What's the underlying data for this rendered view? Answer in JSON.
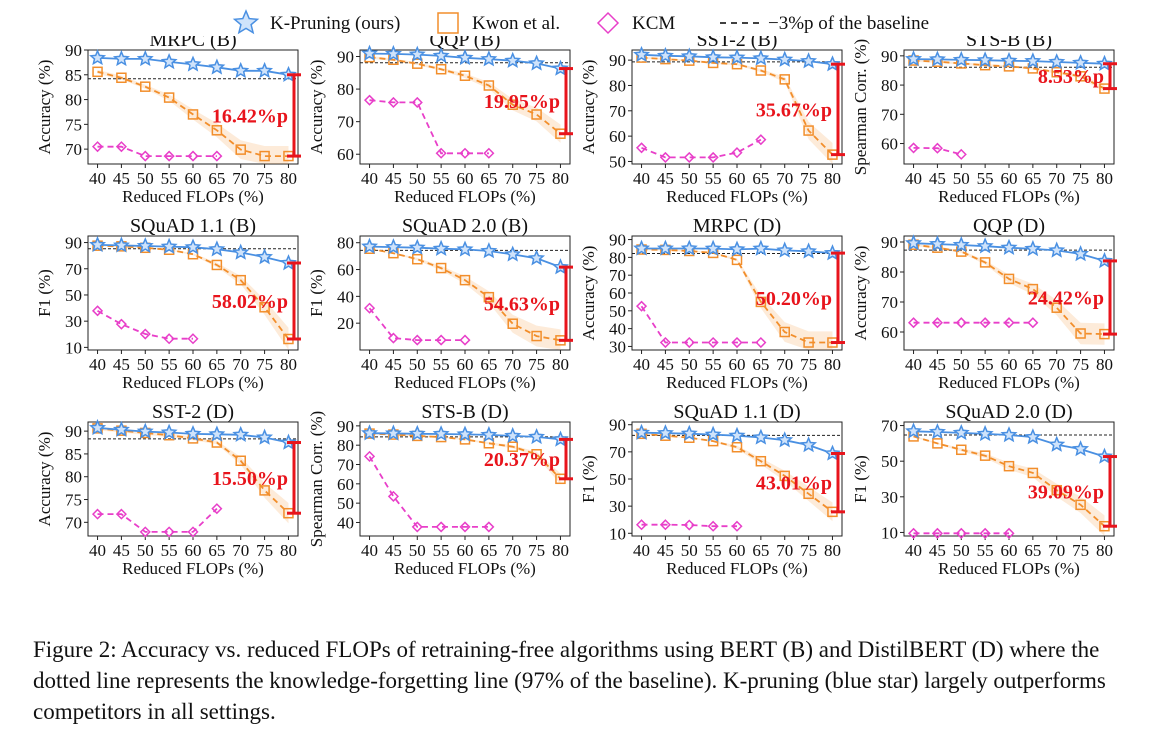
{
  "legend": {
    "items": [
      {
        "label": "K-Pruning (ours)",
        "marker": "star",
        "color": "#4a90e2"
      },
      {
        "label": "Kwon et al.",
        "marker": "square",
        "color": "#f28e2b"
      },
      {
        "label": "KCM",
        "marker": "diamond",
        "color": "#e83fc9"
      },
      {
        "label": "−3%p of the baseline",
        "marker": "dashed-line",
        "color": "#000000"
      }
    ]
  },
  "colors": {
    "kpruning": "#4a90e2",
    "kwon": "#f28e2b",
    "kcm": "#e83fc9",
    "annotation": "#e8141c",
    "baseline": "#222222"
  },
  "caption": "Figure 2: Accuracy vs. reduced FLOPs of retraining-free algorithms using BERT (B) and DistilBERT (D) where the dotted line represents the knowledge-forgetting line (97% of the baseline). K-pruning (blue star) largely outperforms competitors in all settings.",
  "chart_data": [
    {
      "type": "line",
      "title": "MRPC (B)",
      "xlabel": "Reduced FLOPs (%)",
      "ylabel": "Accuracy (%)",
      "ylim": [
        67,
        90
      ],
      "yticks": [
        70,
        75,
        80,
        85,
        90
      ],
      "x": [
        40,
        45,
        50,
        55,
        60,
        65,
        70,
        75,
        80
      ],
      "baseline": 84.2,
      "annotation": {
        "text": "16.42%p",
        "from": 85.0,
        "to": 68.6
      },
      "series": [
        {
          "name": "K-Pruning (ours)",
          "values": [
            88.4,
            88.2,
            88.2,
            87.6,
            87.1,
            86.5,
            85.8,
            85.8,
            85.0
          ]
        },
        {
          "name": "Kwon et al.",
          "values": [
            85.6,
            84.4,
            82.6,
            80.4,
            77.0,
            73.8,
            69.9,
            68.6,
            68.6
          ]
        },
        {
          "name": "KCM",
          "values": [
            70.5,
            70.5,
            68.6,
            68.6,
            68.6,
            68.6,
            null,
            null,
            null
          ]
        }
      ]
    },
    {
      "type": "line",
      "title": "QQP (B)",
      "xlabel": "Reduced FLOPs (%)",
      "ylabel": "Accuracy (%)",
      "ylim": [
        57,
        92
      ],
      "yticks": [
        60,
        70,
        80,
        90
      ],
      "x": [
        40,
        45,
        50,
        55,
        60,
        65,
        70,
        75,
        80
      ],
      "baseline": 88.1,
      "annotation": {
        "text": "19.95%p",
        "from": 86.3,
        "to": 66.3
      },
      "series": [
        {
          "name": "K-Pruning (ours)",
          "values": [
            90.9,
            90.8,
            90.6,
            90.2,
            89.6,
            89.2,
            88.7,
            87.9,
            86.3
          ]
        },
        {
          "name": "Kwon et al.",
          "values": [
            89.8,
            89.0,
            87.8,
            86.1,
            84.1,
            81.1,
            75.2,
            72.2,
            66.3
          ]
        },
        {
          "name": "KCM",
          "values": [
            76.6,
            75.9,
            75.9,
            60.3,
            60.3,
            60.3,
            null,
            null,
            null
          ]
        }
      ]
    },
    {
      "type": "line",
      "title": "SST-2 (B)",
      "xlabel": "Reduced FLOPs (%)",
      "ylabel": "Accuracy (%)",
      "ylim": [
        49,
        94
      ],
      "yticks": [
        50,
        60,
        70,
        80,
        90
      ],
      "x": [
        40,
        45,
        50,
        55,
        60,
        65,
        70,
        75,
        80
      ],
      "baseline": 89.3,
      "annotation": {
        "text": "35.67%p",
        "from": 88.4,
        "to": 52.7
      },
      "series": [
        {
          "name": "K-Pruning (ours)",
          "values": [
            92.1,
            91.7,
            91.5,
            91.1,
            91.0,
            90.7,
            90.2,
            89.6,
            88.4
          ]
        },
        {
          "name": "Kwon et al.",
          "values": [
            91.0,
            90.4,
            89.8,
            88.9,
            88.4,
            85.9,
            82.4,
            62.2,
            52.7
          ]
        },
        {
          "name": "KCM",
          "values": [
            55.4,
            51.6,
            51.6,
            51.6,
            53.5,
            58.6,
            null,
            null,
            null
          ]
        }
      ]
    },
    {
      "type": "line",
      "title": "STS-B (B)",
      "xlabel": "Reduced FLOPs (%)",
      "ylabel": "Spearman Corr. (%)",
      "ylim": [
        53,
        92
      ],
      "yticks": [
        60,
        70,
        80,
        90
      ],
      "x": [
        40,
        45,
        50,
        55,
        60,
        65,
        70,
        75,
        80
      ],
      "baseline": 86.1,
      "annotation": {
        "text": "8.53%p",
        "from": 87.3,
        "to": 78.8
      },
      "series": [
        {
          "name": "K-Pruning (ours)",
          "values": [
            88.9,
            88.8,
            88.6,
            88.5,
            88.3,
            88.2,
            87.9,
            87.6,
            87.3
          ]
        },
        {
          "name": "Kwon et al.",
          "values": [
            88.4,
            88.0,
            87.4,
            86.8,
            86.4,
            85.7,
            84.4,
            83.0,
            78.8
          ]
        },
        {
          "name": "KCM",
          "values": [
            58.5,
            58.4,
            56.3,
            null,
            null,
            null,
            null,
            null,
            null
          ]
        }
      ]
    },
    {
      "type": "line",
      "title": "SQuAD 1.1 (B)",
      "xlabel": "Reduced FLOPs (%)",
      "ylabel": "F1 (%)",
      "ylim": [
        8,
        95
      ],
      "yticks": [
        10,
        30,
        50,
        70,
        90
      ],
      "x": [
        40,
        45,
        50,
        55,
        60,
        65,
        70,
        75,
        80
      ],
      "baseline": 85.3,
      "annotation": {
        "text": "58.02%p",
        "from": 74.4,
        "to": 16.4
      },
      "series": [
        {
          "name": "K-Pruning (ours)",
          "values": [
            88.2,
            87.8,
            87.4,
            86.9,
            86.4,
            84.9,
            82.4,
            78.9,
            74.4
          ]
        },
        {
          "name": "Kwon et al.",
          "values": [
            87.6,
            87.1,
            86.0,
            84.5,
            81.1,
            72.9,
            61.3,
            40.6,
            16.4
          ]
        },
        {
          "name": "KCM",
          "values": [
            37.9,
            27.7,
            20.2,
            16.6,
            16.6,
            null,
            null,
            null,
            null
          ]
        }
      ]
    },
    {
      "type": "line",
      "title": "SQuAD 2.0 (B)",
      "xlabel": "Reduced FLOPs (%)",
      "ylabel": "F1 (%)",
      "ylim": [
        0,
        85
      ],
      "yticks": [
        20,
        40,
        60,
        80
      ],
      "x": [
        40,
        45,
        50,
        55,
        60,
        65,
        70,
        75,
        80
      ],
      "baseline": 74.3,
      "annotation": {
        "text": "54.63%p",
        "from": 61.8,
        "to": 7.2
      },
      "series": [
        {
          "name": "K-Pruning (ours)",
          "values": [
            77.1,
            76.7,
            76.3,
            75.5,
            75.0,
            73.8,
            71.3,
            68.4,
            61.8
          ]
        },
        {
          "name": "Kwon et al.",
          "values": [
            75.5,
            72.2,
            67.7,
            61.1,
            52.1,
            39.4,
            19.6,
            10.4,
            7.2
          ]
        },
        {
          "name": "KCM",
          "values": [
            31.2,
            8.9,
            7.4,
            7.4,
            7.4,
            null,
            null,
            null,
            null
          ]
        }
      ]
    },
    {
      "type": "line",
      "title": "MRPC (D)",
      "xlabel": "Reduced FLOPs (%)",
      "ylabel": "Accuracy (%)",
      "ylim": [
        28,
        92
      ],
      "yticks": [
        30,
        40,
        50,
        60,
        70,
        80,
        90
      ],
      "x": [
        40,
        45,
        50,
        55,
        60,
        65,
        70,
        75,
        80
      ],
      "baseline": 82.2,
      "annotation": {
        "text": "50.20%p",
        "from": 82.4,
        "to": 32.2
      },
      "series": [
        {
          "name": "K-Pruning (ours)",
          "values": [
            85.0,
            85.0,
            85.0,
            84.9,
            84.5,
            84.9,
            83.9,
            83.4,
            82.4
          ]
        },
        {
          "name": "Kwon et al.",
          "values": [
            84.4,
            84.2,
            83.6,
            82.5,
            78.6,
            55.0,
            38.1,
            32.2,
            32.2
          ]
        },
        {
          "name": "KCM",
          "values": [
            52.6,
            32.2,
            32.2,
            32.2,
            32.2,
            32.2,
            null,
            null,
            null
          ]
        }
      ]
    },
    {
      "type": "line",
      "title": "QQP (D)",
      "xlabel": "Reduced FLOPs (%)",
      "ylabel": "Accuracy (%)",
      "ylim": [
        54,
        92
      ],
      "yticks": [
        60,
        70,
        80,
        90
      ],
      "x": [
        40,
        45,
        50,
        55,
        60,
        65,
        70,
        75,
        80
      ],
      "baseline": 87.3,
      "annotation": {
        "text": "24.42%p",
        "from": 83.7,
        "to": 59.3
      },
      "series": [
        {
          "name": "K-Pruning (ours)",
          "values": [
            89.6,
            89.3,
            89.0,
            88.6,
            88.1,
            87.7,
            87.2,
            86.0,
            83.7
          ]
        },
        {
          "name": "Kwon et al.",
          "values": [
            89.1,
            88.1,
            86.8,
            83.2,
            77.7,
            74.3,
            68.1,
            59.5,
            59.3
          ]
        },
        {
          "name": "KCM",
          "values": [
            63.1,
            63.1,
            63.1,
            63.1,
            63.1,
            63.1,
            null,
            null,
            null
          ]
        }
      ]
    },
    {
      "type": "line",
      "title": "SST-2 (D)",
      "xlabel": "Reduced FLOPs (%)",
      "ylabel": "Accuracy (%)",
      "ylim": [
        67,
        92
      ],
      "yticks": [
        70,
        75,
        80,
        85,
        90
      ],
      "x": [
        40,
        45,
        50,
        55,
        60,
        65,
        70,
        75,
        80
      ],
      "baseline": 88.3,
      "annotation": {
        "text": "15.50%p",
        "from": 87.5,
        "to": 72.0
      },
      "series": [
        {
          "name": "K-Pruning (ours)",
          "values": [
            90.7,
            90.3,
            89.9,
            89.7,
            89.4,
            89.3,
            89.2,
            88.6,
            87.5
          ]
        },
        {
          "name": "Kwon et al.",
          "values": [
            90.6,
            90.1,
            89.6,
            89.1,
            88.4,
            87.5,
            83.5,
            77.0,
            72.0
          ]
        },
        {
          "name": "KCM",
          "values": [
            71.8,
            71.8,
            67.9,
            67.9,
            67.9,
            73.0,
            null,
            null,
            null
          ]
        }
      ]
    },
    {
      "type": "line",
      "title": "STS-B (D)",
      "xlabel": "Reduced FLOPs (%)",
      "ylabel": "Spearman Corr. (%)",
      "ylim": [
        33,
        92
      ],
      "yticks": [
        40,
        50,
        60,
        70,
        80,
        90
      ],
      "x": [
        40,
        45,
        50,
        55,
        60,
        65,
        70,
        75,
        80
      ],
      "baseline": 84.3,
      "annotation": {
        "text": "20.37%p",
        "from": 83.0,
        "to": 62.6
      },
      "series": [
        {
          "name": "K-Pruning (ours)",
          "values": [
            86.2,
            86.1,
            85.9,
            85.8,
            85.6,
            85.3,
            84.8,
            84.3,
            83.0
          ]
        },
        {
          "name": "Kwon et al.",
          "values": [
            86.0,
            85.5,
            84.8,
            84.2,
            83.0,
            81.0,
            79.2,
            75.3,
            62.6
          ]
        },
        {
          "name": "KCM",
          "values": [
            74.2,
            53.5,
            37.7,
            37.7,
            37.7,
            37.7,
            null,
            null,
            null
          ]
        }
      ]
    },
    {
      "type": "line",
      "title": "SQuAD 1.1 (D)",
      "xlabel": "Reduced FLOPs (%)",
      "ylabel": "F1 (%)",
      "ylim": [
        8,
        92
      ],
      "yticks": [
        10,
        30,
        50,
        70,
        90
      ],
      "x": [
        40,
        45,
        50,
        55,
        60,
        65,
        70,
        75,
        80
      ],
      "baseline": 82.1,
      "annotation": {
        "text": "43.01%p",
        "from": 68.8,
        "to": 25.8
      },
      "series": [
        {
          "name": "K-Pruning (ours)",
          "values": [
            84.1,
            83.8,
            83.4,
            82.7,
            81.9,
            80.6,
            78.6,
            75.0,
            68.8
          ]
        },
        {
          "name": "Kwon et al.",
          "values": [
            83.3,
            81.9,
            80.4,
            77.9,
            73.4,
            63.1,
            52.3,
            39.1,
            25.8
          ]
        },
        {
          "name": "KCM",
          "values": [
            16.3,
            16.3,
            16.1,
            15.2,
            15.2,
            null,
            null,
            null,
            null
          ]
        }
      ]
    },
    {
      "type": "line",
      "title": "SQuAD 2.0 (D)",
      "xlabel": "Reduced FLOPs (%)",
      "ylabel": "F1 (%)",
      "ylim": [
        8,
        72
      ],
      "yticks": [
        10,
        30,
        50,
        70
      ],
      "x": [
        40,
        45,
        50,
        55,
        60,
        65,
        70,
        75,
        80
      ],
      "baseline": 64.7,
      "annotation": {
        "text": "39.09%p",
        "from": 52.6,
        "to": 13.5
      },
      "series": [
        {
          "name": "K-Pruning (ours)",
          "values": [
            66.8,
            66.4,
            65.9,
            65.3,
            64.7,
            63.5,
            59.3,
            56.8,
            52.6
          ]
        },
        {
          "name": "Kwon et al.",
          "values": [
            63.9,
            60.0,
            56.4,
            53.1,
            47.2,
            43.4,
            33.7,
            25.5,
            13.5
          ]
        },
        {
          "name": "KCM",
          "values": [
            9.5,
            9.5,
            9.5,
            9.5,
            9.5,
            null,
            null,
            null,
            null
          ]
        }
      ]
    }
  ]
}
